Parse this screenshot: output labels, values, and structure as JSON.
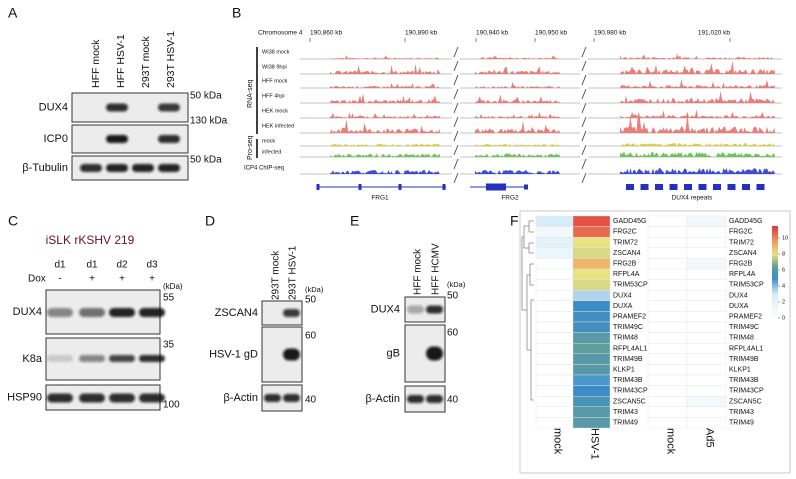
{
  "panel_a": {
    "label": "A",
    "lanes": [
      "HFF mock",
      "HFF HSV-1",
      "293T mock",
      "293T HSV-1"
    ],
    "rows": [
      {
        "name": "DUX4",
        "marker": "50 kDa"
      },
      {
        "name": "ICP0",
        "marker": "130 kDa"
      },
      {
        "name": "β-Tubulin",
        "marker": "50 kDa"
      }
    ]
  },
  "panel_b": {
    "label": "B",
    "chromosome": "Chromosome 4",
    "coordinates": [
      "190,860 kb",
      "190,890 kb",
      "190,940 kb",
      "190,950 kb",
      "190,980 kb",
      "191,020 kb"
    ],
    "rna_seq": {
      "label": "RNA-seq",
      "tracks": [
        "WI38 mock",
        "WI38 9hpi",
        "HFF mock",
        "HFF 4hpi",
        "HEK mock",
        "HEK infected"
      ]
    },
    "pro_seq": {
      "label": "Pro-seq",
      "tracks": [
        "mock",
        "infected"
      ]
    },
    "chip_seq": "ICP4 ChIP-seq",
    "genes": [
      "FRG1",
      "FRG2",
      "DUX4 repeats"
    ]
  },
  "panel_c": {
    "label": "C",
    "title": "iSLK rKSHV 219",
    "lanes": [
      "d1",
      "d1",
      "d2",
      "d3"
    ],
    "dox_label": "Dox",
    "dox": [
      "-",
      "+",
      "+",
      "+"
    ],
    "unit": "(kDa)",
    "rows": [
      {
        "name": "DUX4",
        "marker": "55"
      },
      {
        "name": "K8a",
        "marker": "35"
      },
      {
        "name": "HSP90",
        "marker": "100"
      }
    ]
  },
  "panel_d": {
    "label": "D",
    "lanes": [
      "293T mock",
      "293T HSV-1"
    ],
    "unit": "(kDa)",
    "rows": [
      {
        "name": "ZSCAN4",
        "marker": "50"
      },
      {
        "name": "HSV-1 gD",
        "marker": "60"
      },
      {
        "name": "β-Actin",
        "marker": "40"
      }
    ]
  },
  "panel_e": {
    "label": "E",
    "lanes": [
      "HFF mock",
      "HFF HCMV"
    ],
    "unit": "(kDa)",
    "rows": [
      {
        "name": "DUX4",
        "marker": "50"
      },
      {
        "name": "gB",
        "marker": "60"
      },
      {
        "name": "β-Actin",
        "marker": "40"
      }
    ]
  },
  "panel_f": {
    "label": "F",
    "columns": [
      "mock",
      "HSV-1",
      "mock",
      "Ad5"
    ],
    "genes": [
      "GADD45G",
      "FRG2C",
      "TRIM72",
      "ZSCAN4",
      "FRG2B",
      "RFPL4A",
      "TRIM53CP",
      "DUX4",
      "DUXA",
      "PRAMEF2",
      "TRIM49C",
      "TRIM48",
      "RFPL4AL1",
      "TRIM49B",
      "KLKP1",
      "TRIM43B",
      "TRIM43CP",
      "ZSCAN5C",
      "TRIM43",
      "TRIM49"
    ],
    "values": [
      [
        3,
        11,
        0,
        1
      ],
      [
        1,
        10.5,
        0,
        0
      ],
      [
        2,
        8,
        0,
        0
      ],
      [
        1.5,
        7.8,
        0,
        0
      ],
      [
        0,
        9,
        0,
        1
      ],
      [
        0,
        8,
        0,
        0
      ],
      [
        0,
        7.8,
        0,
        0
      ],
      [
        0,
        3.5,
        0,
        0
      ],
      [
        0,
        5,
        0,
        0
      ],
      [
        0,
        5.2,
        0,
        0
      ],
      [
        0,
        5.3,
        0,
        0
      ],
      [
        0,
        6,
        0,
        0
      ],
      [
        0,
        6.3,
        0,
        0
      ],
      [
        0,
        6,
        0,
        0
      ],
      [
        0,
        6,
        0,
        0
      ],
      [
        0,
        4.8,
        0,
        0
      ],
      [
        0,
        5,
        0,
        0
      ],
      [
        0,
        5.5,
        0,
        1
      ],
      [
        0,
        6,
        0,
        0
      ],
      [
        0,
        6,
        0,
        0
      ]
    ],
    "colorbar_range": [
      0,
      11.5
    ],
    "colorbar_ticks": [
      0,
      2,
      4,
      6,
      8,
      10
    ]
  }
}
